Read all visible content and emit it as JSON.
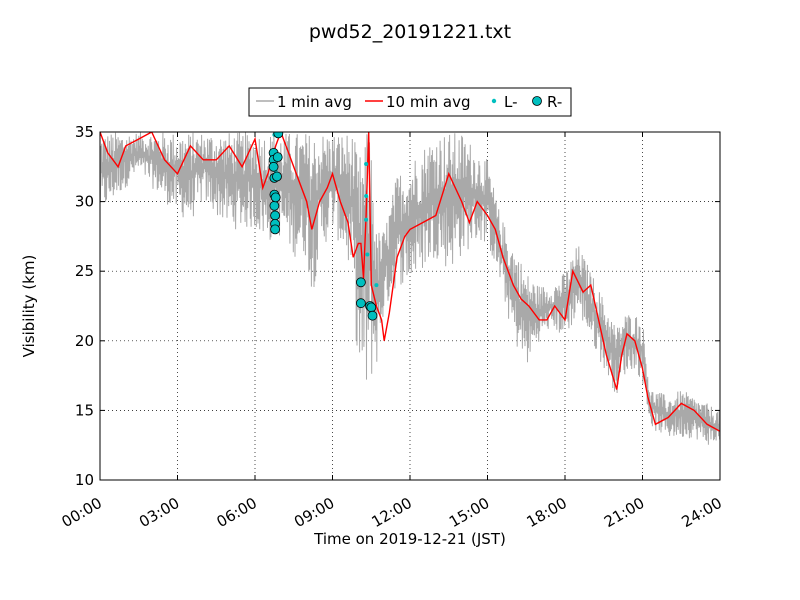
{
  "chart_data": {
    "type": "line",
    "title": "pwd52_20191221.txt",
    "xlabel": "Time on 2019-12-21 (JST)",
    "ylabel": "Visibility (km)",
    "xlim": [
      0,
      24
    ],
    "ylim": [
      10,
      35
    ],
    "x_unit": "hours",
    "x_ticks": [
      {
        "value": 0,
        "label": "00:00"
      },
      {
        "value": 3,
        "label": "03:00"
      },
      {
        "value": 6,
        "label": "06:00"
      },
      {
        "value": 9,
        "label": "09:00"
      },
      {
        "value": 12,
        "label": "12:00"
      },
      {
        "value": 15,
        "label": "15:00"
      },
      {
        "value": 18,
        "label": "18:00"
      },
      {
        "value": 21,
        "label": "21:00"
      },
      {
        "value": 24,
        "label": "24:00"
      }
    ],
    "y_ticks": [
      {
        "value": 10,
        "label": "10"
      },
      {
        "value": 15,
        "label": "15"
      },
      {
        "value": 20,
        "label": "20"
      },
      {
        "value": 25,
        "label": "25"
      },
      {
        "value": 30,
        "label": "30"
      },
      {
        "value": 35,
        "label": "35"
      }
    ],
    "grid": true,
    "legend_position": "top-center",
    "series": [
      {
        "name": "1 min avg",
        "kind": "band",
        "color": "#a9a9a9",
        "x": [
          0.0,
          0.5,
          1.0,
          1.5,
          2.0,
          2.5,
          3.0,
          3.5,
          4.0,
          4.5,
          5.0,
          5.5,
          6.0,
          6.5,
          7.0,
          7.5,
          8.0,
          8.2,
          8.5,
          9.0,
          9.5,
          9.8,
          10.0,
          10.3,
          10.5,
          10.7,
          11.0,
          11.5,
          12.0,
          12.5,
          13.0,
          13.5,
          14.0,
          14.5,
          15.0,
          15.5,
          16.0,
          16.5,
          17.0,
          17.5,
          18.0,
          18.5,
          19.0,
          19.5,
          20.0,
          20.3,
          20.7,
          21.0,
          21.3,
          21.5,
          22.0,
          22.5,
          23.0,
          23.5,
          24.0
        ],
        "low": [
          29,
          30,
          31,
          32,
          31,
          30,
          29,
          28.5,
          30,
          29,
          28,
          28,
          28,
          27,
          27.5,
          26,
          26,
          23,
          26,
          28,
          26,
          24,
          17,
          15.5,
          17,
          18,
          22,
          24,
          24,
          25,
          26,
          25,
          26,
          27,
          27,
          24,
          20,
          18,
          20,
          21,
          20,
          22,
          20,
          18,
          16,
          17.5,
          18,
          17,
          14,
          13.5,
          13,
          13,
          13,
          12.5,
          12.5
        ],
        "high": [
          35,
          35,
          35,
          35,
          35,
          35,
          35,
          35,
          35,
          35,
          35,
          35,
          35,
          35,
          35,
          35,
          35,
          35,
          35,
          35,
          35,
          35,
          33,
          35,
          35,
          28,
          28,
          32,
          33,
          34,
          35,
          35,
          35,
          34,
          33,
          29,
          27,
          25,
          24,
          24,
          25,
          27,
          25,
          23,
          21,
          22,
          22,
          21.5,
          16.5,
          16.5,
          16,
          16.5,
          16,
          15.5,
          15
        ]
      },
      {
        "name": "10 min avg",
        "kind": "line",
        "color": "#ff0000",
        "x": [
          0.0,
          0.3,
          0.7,
          1.0,
          1.5,
          2.0,
          2.5,
          3.0,
          3.5,
          4.0,
          4.5,
          5.0,
          5.5,
          6.0,
          6.3,
          6.5,
          6.8,
          7.0,
          7.3,
          7.6,
          8.0,
          8.2,
          8.5,
          8.8,
          9.0,
          9.3,
          9.6,
          9.8,
          10.0,
          10.1,
          10.2,
          10.3,
          10.4,
          10.5,
          10.7,
          10.8,
          10.9,
          11.0,
          11.2,
          11.5,
          11.8,
          12.0,
          12.5,
          13.0,
          13.5,
          14.0,
          14.3,
          14.6,
          15.0,
          15.3,
          15.6,
          16.0,
          16.3,
          16.6,
          17.0,
          17.3,
          17.6,
          18.0,
          18.3,
          18.7,
          19.0,
          19.3,
          19.6,
          20.0,
          20.2,
          20.4,
          20.7,
          21.0,
          21.2,
          21.5,
          22.0,
          22.5,
          23.0,
          23.5,
          24.0
        ],
        "y": [
          35,
          33.5,
          32.5,
          34,
          34.5,
          35,
          33,
          32,
          34,
          33,
          33,
          34,
          32.5,
          34.5,
          31,
          32,
          34,
          35,
          33.5,
          32,
          30,
          28,
          30,
          31,
          32,
          30,
          28.5,
          26,
          27,
          27,
          24.5,
          29,
          35,
          24,
          22.5,
          22,
          21.5,
          20,
          22,
          26,
          27.5,
          28,
          28.5,
          29,
          32,
          30,
          28.5,
          30,
          29,
          28,
          26,
          24,
          23,
          22.5,
          21.5,
          21.5,
          22.5,
          21.5,
          25,
          23.5,
          24,
          21.5,
          19,
          16.5,
          19,
          20.5,
          20,
          18,
          16,
          14,
          14.5,
          15.5,
          15,
          14,
          13.5
        ]
      },
      {
        "name": "L-",
        "kind": "points",
        "color": "#00bfbf",
        "marker": "small",
        "x": [
          6.75,
          6.75,
          6.8,
          10.3,
          10.3,
          10.3,
          10.35,
          10.4,
          10.7
        ],
        "y": [
          34.8,
          33.5,
          32.2,
          32.7,
          30.4,
          28.7,
          26.2,
          22.4,
          24
        ]
      },
      {
        "name": "R-",
        "kind": "points",
        "color": "#00bfbf",
        "marker": "large",
        "x": [
          6.72,
          6.72,
          6.72,
          6.75,
          6.75,
          6.75,
          6.78,
          6.78,
          6.78,
          6.8,
          6.85,
          6.88,
          6.9,
          10.1,
          10.1,
          10.45,
          10.5,
          10.55
        ],
        "y": [
          33.5,
          33,
          32.5,
          31.7,
          30.5,
          29.7,
          29,
          28.4,
          28,
          30.3,
          31.8,
          33.2,
          34.9,
          24.2,
          22.7,
          22.5,
          22.4,
          21.8
        ]
      }
    ]
  }
}
